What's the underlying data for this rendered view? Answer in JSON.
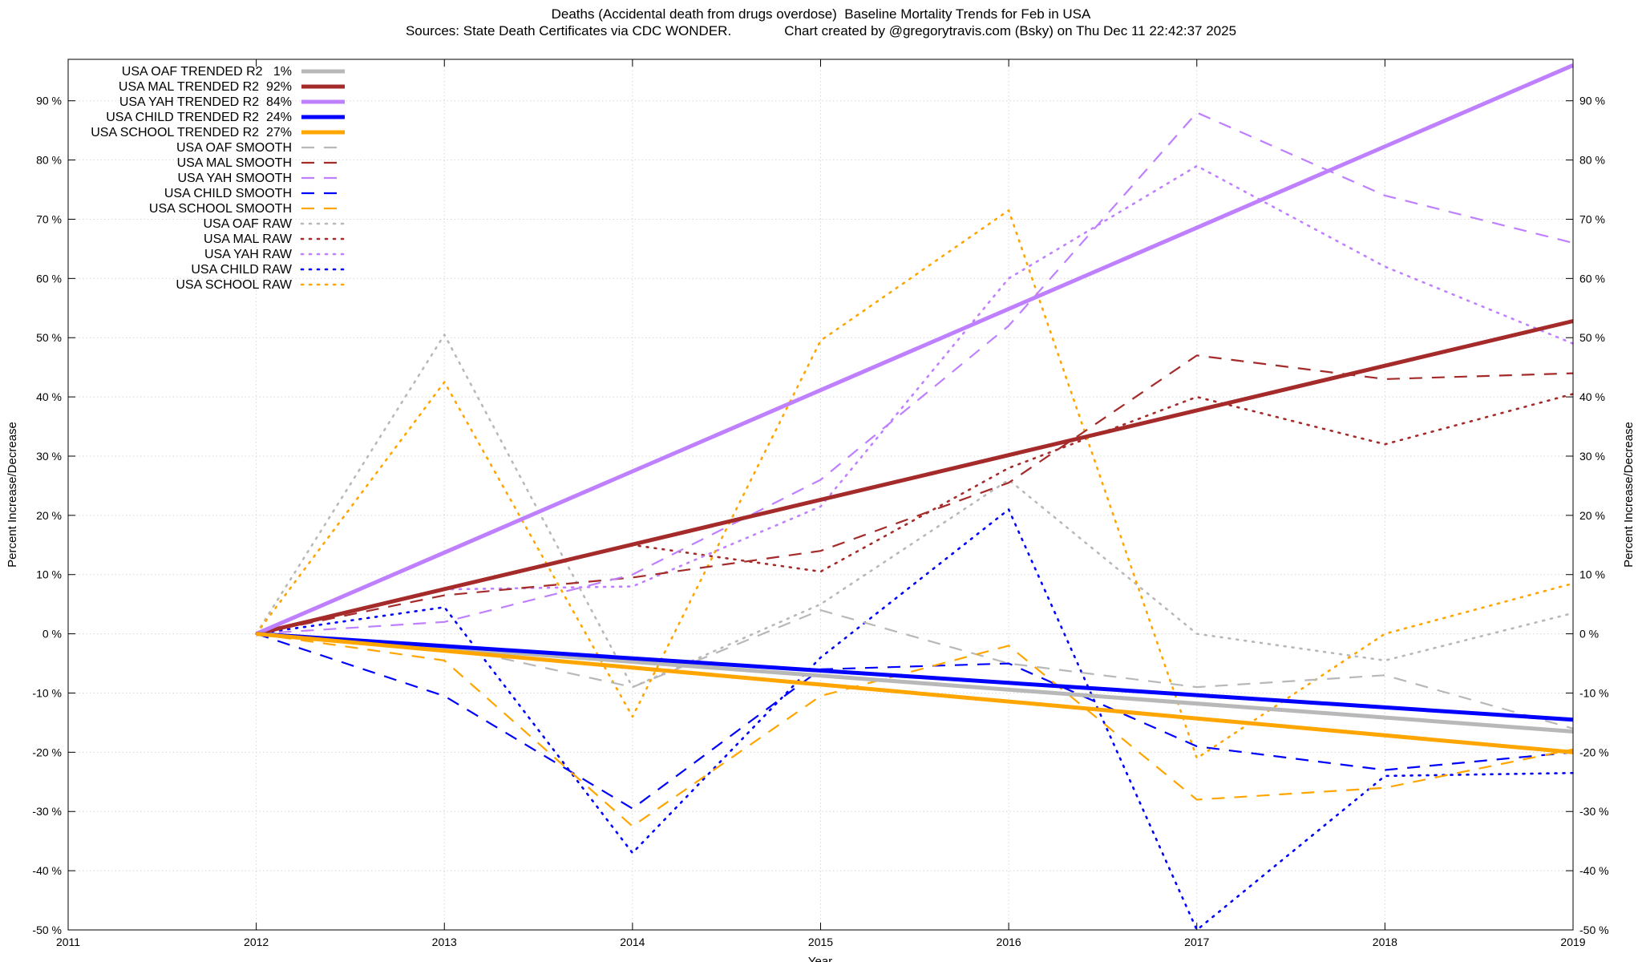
{
  "chart_data": {
    "type": "line",
    "title": "Deaths (Accidental death from drugs overdose)  Baseline Mortality Trends for Feb in USA",
    "subtitle": "Sources: State Death Certificates via CDC WONDER.              Chart created by @gregorytravis.com (Bsky) on Thu Dec 11 22:42:37 2025",
    "xlabel": "Year",
    "ylabel": "Percent Increase/Decrease",
    "y2label": "Percent Increase/Decrease",
    "xlim": [
      2011,
      2019
    ],
    "ylim": [
      -50,
      97
    ],
    "xticks": [
      "2011",
      "2012",
      "2013",
      "2014",
      "2015",
      "2016",
      "2017",
      "2018",
      "2019"
    ],
    "yticks": [
      "-50 %",
      "-40 %",
      "-30 %",
      "-20 %",
      "-10 %",
      "0 %",
      "10 %",
      "20 %",
      "30 %",
      "40 %",
      "50 %",
      "60 %",
      "70 %",
      "80 %",
      "90 %"
    ],
    "grid": true,
    "legend_position": "top-left",
    "colors": {
      "oaf": "#b8b8b8",
      "mal": "#a52a2a",
      "yah": "#bf80ff",
      "child": "#0000ff",
      "school": "#ffa500"
    },
    "series": [
      {
        "name": "USA OAF TRENDED R2   1%",
        "group": "oaf",
        "style": "trend",
        "x": [
          2012,
          2019
        ],
        "values": [
          0,
          -16.5
        ]
      },
      {
        "name": "USA MAL TRENDED R2  92%",
        "group": "mal",
        "style": "trend",
        "x": [
          2012,
          2019
        ],
        "values": [
          0,
          52.8
        ]
      },
      {
        "name": "USA YAH TRENDED R2  84%",
        "group": "yah",
        "style": "trend",
        "x": [
          2012,
          2019
        ],
        "values": [
          0,
          96
        ]
      },
      {
        "name": "USA CHILD TRENDED R2  24%",
        "group": "child",
        "style": "trend",
        "x": [
          2012,
          2019
        ],
        "values": [
          0,
          -14.5
        ]
      },
      {
        "name": "USA SCHOOL TRENDED R2  27%",
        "group": "school",
        "style": "trend",
        "x": [
          2012,
          2019
        ],
        "values": [
          0,
          -20
        ]
      },
      {
        "name": "USA OAF SMOOTH",
        "group": "oaf",
        "style": "smooth",
        "x": [
          2012,
          2013,
          2014,
          2015,
          2016,
          2017,
          2018,
          2019
        ],
        "values": [
          0,
          -2,
          -9,
          4,
          -5,
          -9,
          -7,
          -16
        ]
      },
      {
        "name": "USA MAL SMOOTH",
        "group": "mal",
        "style": "smooth",
        "x": [
          2012,
          2013,
          2014,
          2015,
          2016,
          2017,
          2018,
          2019
        ],
        "values": [
          0,
          6.5,
          9.5,
          14,
          25.5,
          47,
          43,
          44
        ]
      },
      {
        "name": "USA YAH SMOOTH",
        "group": "yah",
        "style": "smooth",
        "x": [
          2012,
          2013,
          2014,
          2015,
          2016,
          2017,
          2018,
          2019
        ],
        "values": [
          0,
          2,
          10,
          26,
          52,
          88,
          74,
          66
        ]
      },
      {
        "name": "USA CHILD SMOOTH",
        "group": "child",
        "style": "smooth",
        "x": [
          2012,
          2013,
          2014,
          2015,
          2016,
          2017,
          2018,
          2019
        ],
        "values": [
          0,
          -10.5,
          -29.5,
          -6,
          -5,
          -19,
          -23,
          -20
        ]
      },
      {
        "name": "USA SCHOOL SMOOTH",
        "group": "school",
        "style": "smooth",
        "x": [
          2012,
          2013,
          2014,
          2015,
          2016,
          2017,
          2018,
          2019
        ],
        "values": [
          0,
          -4.5,
          -32.5,
          -10.5,
          -2,
          -28,
          -26,
          -19.5
        ]
      },
      {
        "name": "USA OAF RAW",
        "group": "oaf",
        "style": "raw",
        "x": [
          2012,
          2013,
          2014,
          2015,
          2016,
          2017,
          2018,
          2019
        ],
        "values": [
          0,
          50.5,
          -9,
          5,
          26,
          0,
          -4.5,
          3.5
        ]
      },
      {
        "name": "USA MAL RAW",
        "group": "mal",
        "style": "raw",
        "x": [
          2012,
          2013,
          2014,
          2015,
          2016,
          2017,
          2018,
          2019
        ],
        "values": [
          0,
          7.5,
          15,
          10.5,
          28,
          40,
          32,
          40.5
        ]
      },
      {
        "name": "USA YAH RAW",
        "group": "yah",
        "style": "raw",
        "x": [
          2012,
          2013,
          2014,
          2015,
          2016,
          2017,
          2018,
          2019
        ],
        "values": [
          0,
          7.5,
          8,
          21.5,
          60,
          79,
          62,
          49
        ]
      },
      {
        "name": "USA CHILD RAW",
        "group": "child",
        "style": "raw",
        "x": [
          2012,
          2013,
          2014,
          2015,
          2016,
          2017,
          2018,
          2019
        ],
        "values": [
          0,
          4.5,
          -37,
          -4,
          21,
          -50,
          -24,
          -23.5
        ]
      },
      {
        "name": "USA SCHOOL RAW",
        "group": "school",
        "style": "raw",
        "x": [
          2012,
          2013,
          2014,
          2015,
          2016,
          2017,
          2018,
          2019
        ],
        "values": [
          0,
          42.5,
          -14,
          49.5,
          71.5,
          -21,
          0,
          8.5
        ]
      }
    ]
  }
}
